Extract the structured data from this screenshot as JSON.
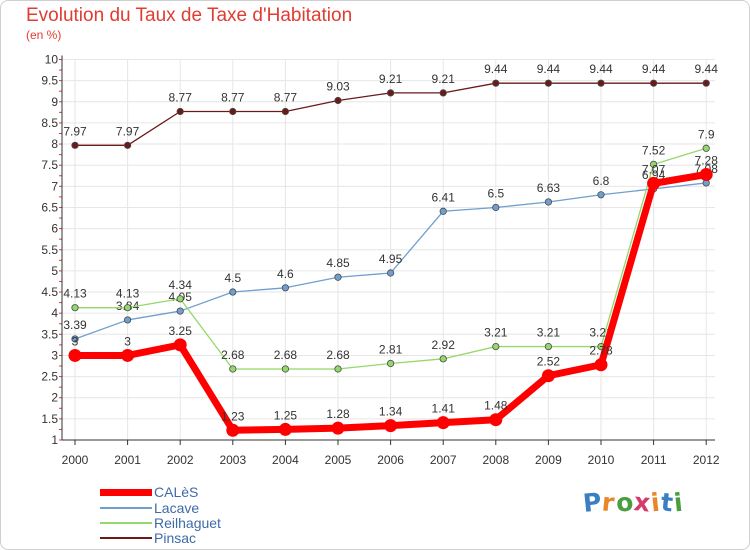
{
  "title": "Evolution du Taux de Taxe d'Habitation",
  "subtitle": "(en %)",
  "logo": {
    "text": "Proxiti",
    "colors": [
      "#3a7fc2",
      "#e8862a",
      "#4a9e3f",
      "#d43b6b",
      "#e8862a",
      "#3a7fc2",
      "#4a9e3f"
    ]
  },
  "chart_data": {
    "type": "line",
    "x": [
      "2000",
      "2001",
      "2002",
      "2003",
      "2004",
      "2005",
      "2006",
      "2007",
      "2008",
      "2009",
      "2010",
      "2011",
      "2012"
    ],
    "yticks": [
      "1",
      "1.5",
      "2",
      "2.5",
      "3",
      "3.5",
      "4",
      "4.5",
      "5",
      "5.5",
      "6",
      "6.5",
      "7",
      "7.5",
      "8",
      "8.5",
      "9",
      "9.5",
      "10"
    ],
    "ylim": [
      1,
      10
    ],
    "grid": true,
    "legend_position": "bottom-left",
    "series": [
      {
        "name": "Pinsac",
        "color": "#6b1a1a",
        "values": [
          7.97,
          7.97,
          8.77,
          8.77,
          8.77,
          9.03,
          9.21,
          9.21,
          9.44,
          9.44,
          9.44,
          9.44,
          9.44
        ],
        "labels": [
          "7.97",
          "7.97",
          "8.77",
          "8.77",
          "8.77",
          "9.03",
          "9.21",
          "9.21",
          "9.44",
          "9.44",
          "9.44",
          "9.44",
          "9.44"
        ]
      },
      {
        "name": "Lacave",
        "color": "#6f9fcf",
        "values": [
          3.39,
          3.84,
          4.05,
          4.5,
          4.6,
          4.85,
          4.95,
          6.41,
          6.5,
          6.63,
          6.8,
          6.94,
          7.08
        ],
        "labels": [
          "3.39",
          "3.84",
          "4.05",
          "4.5",
          "4.6",
          "4.85",
          "4.95",
          "6.41",
          "6.5",
          "6.63",
          "6.8",
          "6.94",
          "7.08"
        ]
      },
      {
        "name": "Reilhaguet",
        "color": "#94d86a",
        "values": [
          4.13,
          4.13,
          4.34,
          2.68,
          2.68,
          2.68,
          2.81,
          2.92,
          3.21,
          3.21,
          3.21,
          7.52,
          7.9
        ],
        "labels": [
          "4.13",
          "4.13",
          "4.34",
          "2.68",
          "2.68",
          "2.68",
          "2.81",
          "2.92",
          "3.21",
          "3.21",
          "3.21",
          "7.52",
          "7.9"
        ]
      },
      {
        "name": "CALèS",
        "color": "#ff0000",
        "values": [
          3,
          3,
          3.25,
          1.23,
          1.25,
          1.28,
          1.34,
          1.41,
          1.48,
          2.52,
          2.78,
          7.07,
          7.28
        ],
        "labels": [
          "3",
          "3",
          "3.25",
          "1.23",
          "1.25",
          "1.28",
          "1.34",
          "1.41",
          "1.48",
          "2.52",
          "2.78",
          "7.07",
          "7.28"
        ]
      }
    ],
    "legend": [
      {
        "name": "CALèS",
        "color": "#ff0000"
      },
      {
        "name": "Lacave",
        "color": "#6f9fcf"
      },
      {
        "name": "Reilhaguet",
        "color": "#94d86a"
      },
      {
        "name": "Pinsac",
        "color": "#6b1a1a"
      }
    ]
  }
}
